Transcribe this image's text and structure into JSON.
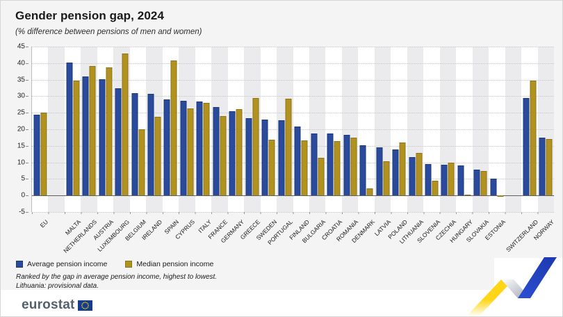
{
  "header": {
    "title": "Gender pension gap, 2024",
    "subtitle": "(% difference between pensions of men and women)"
  },
  "chart_data": {
    "type": "bar",
    "title": "Gender pension gap, 2024",
    "subtitle": "(% difference between pensions of men and women)",
    "unit": "%",
    "ylim": [
      -5,
      45
    ],
    "ytick_step": 5,
    "grid": "horizontal-dotted",
    "legend_position": "bottom-left",
    "categories": [
      "EU",
      "MALTA",
      "NETHERLANDS",
      "AUSTRIA",
      "LUXEMBOURG",
      "BELGIUM",
      "IRELAND",
      "SPAIN",
      "CYPRUS",
      "ITALY",
      "FRANCE",
      "GERMANY",
      "GREECE",
      "SWEDEN",
      "PORTUGAL",
      "FINLAND",
      "BULGARIA",
      "CROATIA",
      "ROMANIA",
      "DENMARK",
      "LATVIA",
      "POLAND",
      "LITHUANIA",
      "SLOVENIA",
      "CZECHIA",
      "HUNGARY",
      "SLOVAKIA",
      "ESTONIA",
      "SWITZERLAND",
      "NORWAY"
    ],
    "series": [
      {
        "name": "Average pension income",
        "color": "#2a4b9b",
        "values": [
          24.5,
          40.1,
          36.0,
          35.2,
          32.3,
          31.0,
          30.7,
          29.0,
          28.6,
          28.3,
          26.8,
          25.4,
          23.4,
          22.9,
          22.7,
          20.8,
          18.8,
          18.7,
          18.3,
          15.2,
          14.5,
          13.9,
          11.5,
          9.4,
          9.2,
          9.0,
          7.8,
          5.1,
          29.4,
          17.4
        ]
      },
      {
        "name": "Median pension income",
        "color": "#b2921f",
        "values": [
          25.0,
          34.8,
          39.2,
          38.7,
          43.0,
          20.0,
          23.8,
          40.8,
          26.2,
          28.0,
          24.0,
          26.1,
          29.4,
          16.8,
          29.3,
          16.7,
          11.3,
          16.4,
          17.4,
          2.2,
          10.4,
          16.0,
          12.9,
          4.4,
          9.9,
          0.3,
          7.3,
          -0.3,
          34.8,
          17.1
        ]
      }
    ],
    "category_gaps_after": [
      0,
      27
    ]
  },
  "legend": {
    "items": [
      {
        "label": "Average pension income",
        "color": "#2a4b9b"
      },
      {
        "label": "Median pension income",
        "color": "#b2921f"
      }
    ]
  },
  "footnotes": [
    "Ranked by the gap in average pension income, highest to lowest.",
    "Lithuania: provisional data."
  ],
  "footer": {
    "brand": "eurostat"
  },
  "theme": {
    "content_bg": "#f4f4f5",
    "band_gray": "#ebebed",
    "band_white": "#ffffff",
    "ribbon_yellow": "#ffd617",
    "ribbon_blue": "#2143c4"
  }
}
